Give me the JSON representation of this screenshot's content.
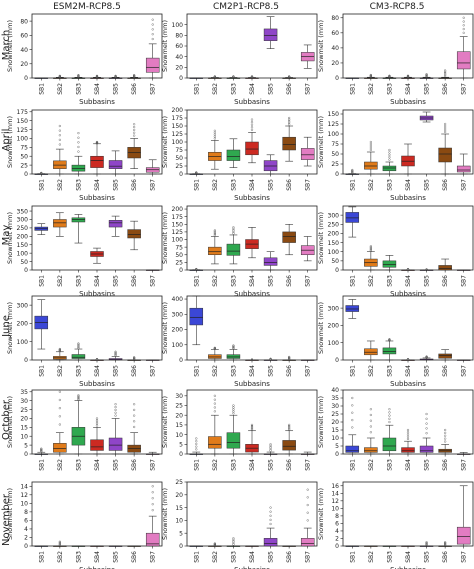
{
  "columns": [
    "ESM2M-RCP8.5",
    "CM2P1-RCP8.5",
    "CM3-RCP8.5"
  ],
  "rows": [
    "March",
    "April",
    "May",
    "June",
    "October",
    "November"
  ],
  "ylabel": "Snowmelt (mm)",
  "xlabel": "Subbasins",
  "subbasins": [
    "SB1",
    "SB2",
    "SB3",
    "SB4",
    "SB5",
    "SB6",
    "SB7"
  ],
  "colors": {
    "SB1": "#3b47d6",
    "SB2": "#e07b1a",
    "SB3": "#2fa84f",
    "SB4": "#cc2a22",
    "SB5": "#8f45c8",
    "SB6": "#8a4a12",
    "SB7": "#e27cc2"
  },
  "chart_data": [
    {
      "type": "box",
      "row": "March",
      "col": "ESM2M-RCP8.5",
      "ylim": [
        0,
        90
      ],
      "yticks": [
        0,
        20,
        40,
        60,
        80
      ],
      "boxes": [
        [
          0,
          0,
          0,
          0,
          0,
          0
        ],
        [
          0,
          0,
          0,
          0,
          1,
          3
        ],
        [
          0,
          0,
          0,
          0,
          1,
          4
        ],
        [
          0,
          0,
          0,
          0,
          1,
          3
        ],
        [
          0,
          0,
          0,
          0,
          1,
          3
        ],
        [
          0,
          0,
          0,
          0,
          1,
          4
        ],
        [
          0,
          8,
          15,
          28,
          48,
          82
        ]
      ]
    },
    {
      "type": "box",
      "row": "March",
      "col": "CM2P1-RCP8.5",
      "ylim": [
        0,
        120
      ],
      "yticks": [
        0,
        20,
        40,
        60,
        80,
        100
      ],
      "boxes": [
        [
          0,
          0,
          0,
          0,
          0,
          0
        ],
        [
          0,
          0,
          0,
          0,
          1,
          3
        ],
        [
          0,
          0,
          0,
          0,
          1,
          3
        ],
        [
          0,
          0,
          0,
          0,
          1,
          3
        ],
        [
          55,
          70,
          80,
          92,
          115,
          115
        ],
        [
          0,
          0,
          0,
          0,
          1,
          3
        ],
        [
          18,
          32,
          40,
          48,
          62,
          62
        ]
      ]
    },
    {
      "type": "box",
      "row": "March",
      "col": "CM3-RCP8.5",
      "ylim": [
        0,
        85
      ],
      "yticks": [
        0,
        20,
        40,
        60,
        80
      ],
      "boxes": [
        [
          0,
          0,
          0,
          0,
          0,
          0
        ],
        [
          0,
          0,
          0,
          0,
          1,
          4
        ],
        [
          0,
          0,
          0,
          0,
          1,
          3
        ],
        [
          0,
          0,
          0,
          0,
          1,
          3
        ],
        [
          0,
          0,
          0,
          0,
          1,
          5
        ],
        [
          0,
          0,
          0,
          0,
          1,
          10
        ],
        [
          0,
          12,
          20,
          35,
          55,
          80
        ]
      ]
    },
    {
      "type": "box",
      "row": "April",
      "col": "ESM2M-RCP8.5",
      "ylim": [
        0,
        180
      ],
      "yticks": [
        0,
        25,
        50,
        75,
        100,
        125,
        150,
        175
      ],
      "boxes": [
        [
          0,
          0,
          0,
          0,
          1,
          3
        ],
        [
          0,
          15,
          25,
          37,
          70,
          135
        ],
        [
          0,
          8,
          15,
          25,
          50,
          115
        ],
        [
          0,
          18,
          38,
          50,
          85,
          90
        ],
        [
          0,
          15,
          22,
          38,
          65,
          65
        ],
        [
          15,
          45,
          60,
          75,
          100,
          140
        ],
        [
          0,
          5,
          12,
          18,
          40,
          40
        ]
      ]
    },
    {
      "type": "box",
      "row": "April",
      "col": "CM2P1-RCP8.5",
      "ylim": [
        0,
        200
      ],
      "yticks": [
        0,
        25,
        50,
        75,
        100,
        125,
        150,
        175,
        200
      ],
      "boxes": [
        [
          0,
          0,
          0,
          0,
          1,
          5
        ],
        [
          15,
          42,
          55,
          68,
          105,
          135
        ],
        [
          20,
          42,
          55,
          75,
          110,
          110
        ],
        [
          35,
          60,
          78,
          100,
          130,
          170
        ],
        [
          0,
          10,
          25,
          42,
          60,
          60
        ],
        [
          40,
          75,
          92,
          115,
          150,
          175
        ],
        [
          25,
          45,
          60,
          80,
          115,
          115
        ]
      ]
    },
    {
      "type": "box",
      "row": "April",
      "col": "CM3-RCP8.5",
      "ylim": [
        0,
        160
      ],
      "yticks": [
        0,
        25,
        50,
        75,
        100,
        125,
        150
      ],
      "boxes": [
        [
          0,
          0,
          0,
          0,
          1,
          10
        ],
        [
          0,
          12,
          20,
          30,
          55,
          80
        ],
        [
          0,
          8,
          15,
          20,
          30,
          60
        ],
        [
          0,
          20,
          32,
          45,
          75,
          75
        ],
        [
          130,
          135,
          140,
          145,
          155,
          155
        ],
        [
          0,
          30,
          50,
          65,
          100,
          125
        ],
        [
          0,
          5,
          10,
          20,
          50,
          50
        ]
      ]
    },
    {
      "type": "box",
      "row": "May",
      "col": "ESM2M-RCP8.5",
      "ylim": [
        0,
        380
      ],
      "yticks": [
        0,
        50,
        100,
        150,
        200,
        250,
        300,
        350
      ],
      "boxes": [
        [
          210,
          235,
          245,
          255,
          275,
          275
        ],
        [
          200,
          255,
          280,
          300,
          340,
          340
        ],
        [
          160,
          285,
          300,
          310,
          330,
          330
        ],
        [
          40,
          80,
          95,
          110,
          130,
          130
        ],
        [
          200,
          255,
          280,
          295,
          320,
          320
        ],
        [
          120,
          190,
          210,
          240,
          290,
          290
        ],
        [
          0,
          0,
          0,
          0,
          1,
          1
        ]
      ]
    },
    {
      "type": "box",
      "row": "May",
      "col": "CM2P1-RCP8.5",
      "ylim": [
        0,
        210
      ],
      "yticks": [
        0,
        25,
        50,
        75,
        100,
        125,
        150,
        175,
        200
      ],
      "boxes": [
        [
          0,
          0,
          0,
          0,
          1,
          3
        ],
        [
          20,
          50,
          60,
          75,
          110,
          130
        ],
        [
          20,
          48,
          62,
          85,
          115,
          140
        ],
        [
          40,
          70,
          85,
          100,
          140,
          140
        ],
        [
          0,
          15,
          25,
          40,
          60,
          60
        ],
        [
          50,
          90,
          110,
          125,
          150,
          150
        ],
        [
          30,
          50,
          65,
          80,
          110,
          110
        ]
      ]
    },
    {
      "type": "box",
      "row": "May",
      "col": "CM3-RCP8.5",
      "ylim": [
        0,
        350
      ],
      "yticks": [
        0,
        50,
        100,
        150,
        200,
        250,
        300
      ],
      "boxes": [
        [
          180,
          260,
          285,
          315,
          345,
          345
        ],
        [
          0,
          20,
          40,
          60,
          100,
          130
        ],
        [
          0,
          15,
          30,
          50,
          80,
          80
        ],
        [
          0,
          0,
          0,
          0,
          1,
          5
        ],
        [
          0,
          0,
          0,
          0,
          1,
          3
        ],
        [
          0,
          0,
          8,
          25,
          60,
          60
        ],
        [
          0,
          0,
          0,
          0,
          1,
          1
        ]
      ]
    },
    {
      "type": "box",
      "row": "June",
      "col": "ESM2M-RCP8.5",
      "ylim": [
        0,
        350
      ],
      "yticks": [
        0,
        100,
        200,
        300
      ],
      "boxes": [
        [
          60,
          170,
          205,
          240,
          330,
          330
        ],
        [
          0,
          5,
          12,
          20,
          45,
          60
        ],
        [
          0,
          8,
          15,
          30,
          60,
          90
        ],
        [
          0,
          0,
          0,
          0,
          1,
          5
        ],
        [
          0,
          0,
          3,
          8,
          20,
          45
        ],
        [
          0,
          0,
          0,
          0,
          1,
          15
        ],
        [
          0,
          0,
          0,
          0,
          1,
          1
        ]
      ]
    },
    {
      "type": "box",
      "row": "June",
      "col": "CM2P1-RCP8.5",
      "ylim": [
        0,
        420
      ],
      "yticks": [
        0,
        100,
        200,
        300,
        400
      ],
      "boxes": [
        [
          100,
          230,
          280,
          340,
          420,
          420
        ],
        [
          0,
          10,
          20,
          35,
          70,
          80
        ],
        [
          0,
          10,
          20,
          35,
          70,
          95
        ],
        [
          0,
          0,
          0,
          0,
          1,
          3
        ],
        [
          0,
          0,
          0,
          0,
          1,
          8
        ],
        [
          0,
          0,
          0,
          0,
          1,
          20
        ],
        [
          0,
          0,
          0,
          0,
          1,
          1
        ]
      ]
    },
    {
      "type": "box",
      "row": "June",
      "col": "CM3-RCP8.5",
      "ylim": [
        0,
        370
      ],
      "yticks": [
        0,
        100,
        200,
        300
      ],
      "boxes": [
        [
          240,
          280,
          295,
          315,
          350,
          350
        ],
        [
          0,
          30,
          45,
          65,
          110,
          110
        ],
        [
          0,
          35,
          50,
          70,
          110,
          120
        ],
        [
          0,
          0,
          0,
          0,
          1,
          5
        ],
        [
          0,
          0,
          2,
          6,
          12,
          20
        ],
        [
          0,
          10,
          25,
          35,
          60,
          60
        ],
        [
          0,
          0,
          0,
          0,
          1,
          1
        ]
      ]
    },
    {
      "type": "box",
      "row": "October",
      "col": "ESM2M-RCP8.5",
      "ylim": [
        0,
        36
      ],
      "yticks": [
        0,
        5,
        10,
        15,
        20,
        25,
        30,
        35
      ],
      "boxes": [
        [
          0,
          0,
          0,
          0,
          1,
          3
        ],
        [
          0,
          1,
          3,
          6,
          12,
          35
        ],
        [
          0,
          5,
          10,
          15,
          30,
          33
        ],
        [
          0,
          2,
          4,
          8,
          15,
          20
        ],
        [
          0,
          2,
          5,
          9,
          20,
          28
        ],
        [
          0,
          1,
          3,
          5,
          12,
          28
        ],
        [
          0,
          0,
          0,
          0,
          1,
          1
        ]
      ]
    },
    {
      "type": "box",
      "row": "October",
      "col": "CM2P1-RCP8.5",
      "ylim": [
        0,
        33
      ],
      "yticks": [
        0,
        5,
        10,
        15,
        20,
        25,
        30
      ],
      "boxes": [
        [
          0,
          0,
          0,
          0,
          1,
          8
        ],
        [
          0,
          3,
          5,
          9,
          20,
          30
        ],
        [
          0,
          3,
          6,
          11,
          20,
          25
        ],
        [
          0,
          1,
          3,
          5,
          12,
          15
        ],
        [
          0,
          0,
          0,
          0,
          1,
          5
        ],
        [
          0,
          2,
          4,
          7,
          12,
          15
        ],
        [
          0,
          0,
          0,
          0,
          1,
          1
        ]
      ]
    },
    {
      "type": "box",
      "row": "October",
      "col": "CM3-RCP8.5",
      "ylim": [
        0,
        40
      ],
      "yticks": [
        0,
        5,
        10,
        15,
        20,
        25,
        30,
        35,
        40
      ],
      "boxes": [
        [
          0,
          1,
          2,
          5,
          12,
          35
        ],
        [
          0,
          1,
          2,
          4,
          10,
          28
        ],
        [
          0,
          2,
          5,
          10,
          18,
          28
        ],
        [
          0,
          1,
          2,
          4,
          8,
          15
        ],
        [
          0,
          1,
          2,
          5,
          10,
          25
        ],
        [
          0,
          1,
          2,
          3,
          6,
          15
        ],
        [
          0,
          0,
          0,
          0,
          1,
          1
        ]
      ]
    },
    {
      "type": "box",
      "row": "November",
      "col": "ESM2M-RCP8.5",
      "ylim": [
        0,
        15
      ],
      "yticks": [
        0,
        2,
        4,
        6,
        8,
        10,
        12,
        14
      ],
      "boxes": [
        [
          0,
          0,
          0,
          0,
          0,
          0
        ],
        [
          0,
          0,
          0,
          0,
          0,
          1
        ],
        [
          0,
          0,
          0,
          0,
          0,
          0
        ],
        [
          0,
          0,
          0,
          0,
          0,
          0
        ],
        [
          0,
          0,
          0,
          0,
          0,
          0
        ],
        [
          0,
          0,
          0,
          0,
          0,
          0
        ],
        [
          0,
          0,
          0.5,
          3,
          7,
          14
        ]
      ]
    },
    {
      "type": "box",
      "row": "November",
      "col": "CM2P1-RCP8.5",
      "ylim": [
        0,
        25
      ],
      "yticks": [
        0,
        5,
        10,
        15,
        20,
        25
      ],
      "boxes": [
        [
          0,
          0,
          0,
          0,
          0,
          0
        ],
        [
          0,
          0,
          0,
          0,
          0,
          1
        ],
        [
          0,
          0,
          0,
          0,
          0,
          3
        ],
        [
          0,
          0,
          0,
          0,
          0,
          0
        ],
        [
          0,
          0,
          1,
          3,
          7,
          15
        ],
        [
          0,
          0,
          0,
          0,
          0,
          0
        ],
        [
          0,
          0,
          1,
          3,
          7,
          22
        ]
      ]
    },
    {
      "type": "box",
      "row": "November",
      "col": "CM3-RCP8.5",
      "ylim": [
        0,
        17
      ],
      "yticks": [
        0,
        2,
        4,
        6,
        8,
        10,
        12,
        14,
        16
      ],
      "boxes": [
        [
          0,
          0,
          0,
          0,
          0,
          0
        ],
        [
          0,
          0,
          0,
          0,
          0,
          0
        ],
        [
          0,
          0,
          0,
          0,
          0,
          0
        ],
        [
          0,
          0,
          0,
          0,
          0,
          0
        ],
        [
          0,
          0,
          0,
          0,
          0,
          1
        ],
        [
          0,
          0,
          0,
          0,
          0,
          1
        ],
        [
          0,
          0.5,
          2.5,
          5,
          16,
          16
        ]
      ]
    }
  ]
}
